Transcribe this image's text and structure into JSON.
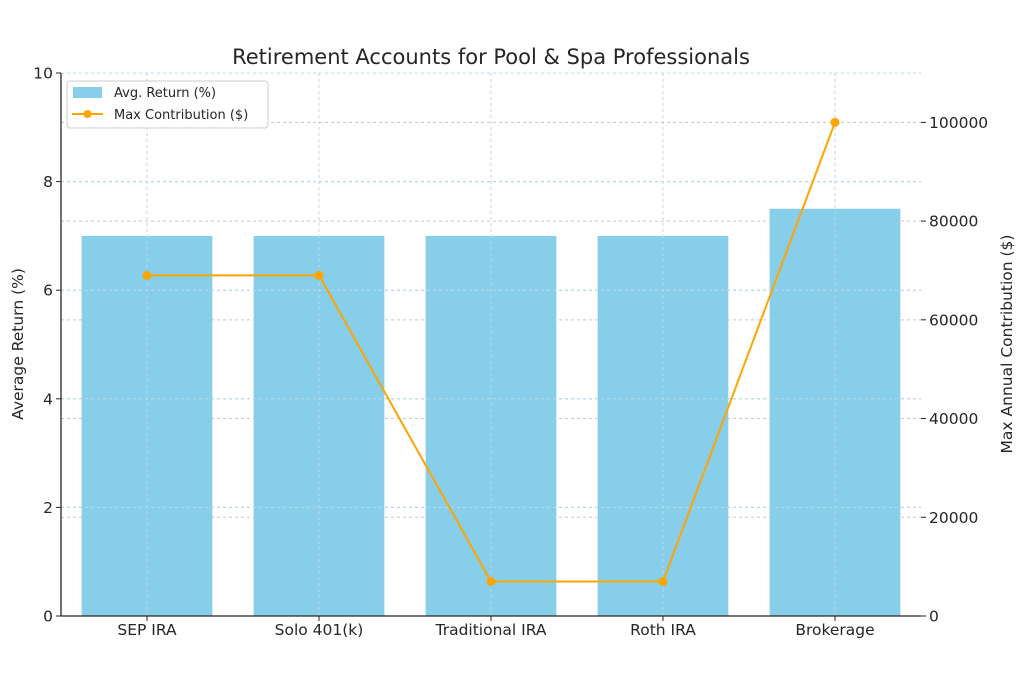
{
  "chart_data": {
    "type": "bar+line",
    "title": "Retirement Accounts for Pool & Spa Professionals",
    "categories": [
      "SEP IRA",
      "Solo 401(k)",
      "Traditional IRA",
      "Roth IRA",
      "Brokerage"
    ],
    "series": [
      {
        "name": "Avg. Return (%)",
        "type": "bar",
        "axis": "left",
        "color": "#87CEEB",
        "values": [
          7.0,
          7.0,
          7.0,
          7.0,
          7.5
        ]
      },
      {
        "name": "Max Contribution ($)",
        "type": "line",
        "axis": "right",
        "color": "#FFA500",
        "marker": "circle",
        "values": [
          69000,
          69000,
          7000,
          7000,
          100000
        ]
      }
    ],
    "xlabel": "",
    "ylabel": "Average Return (%)",
    "ylabel_right": "Max Annual Contribution ($)",
    "ylim": [
      0,
      10
    ],
    "ylim_right": [
      0,
      110000
    ],
    "yticks": [
      0,
      2,
      4,
      6,
      8,
      10
    ],
    "yticks_right": [
      0,
      20000,
      40000,
      60000,
      80000,
      100000
    ],
    "grid": true,
    "legend_position": "upper left"
  },
  "legend": {
    "items": [
      {
        "label": "Avg. Return (%)",
        "kind": "bar-swatch"
      },
      {
        "label": "Max Contribution ($)",
        "kind": "line-marker"
      }
    ]
  }
}
